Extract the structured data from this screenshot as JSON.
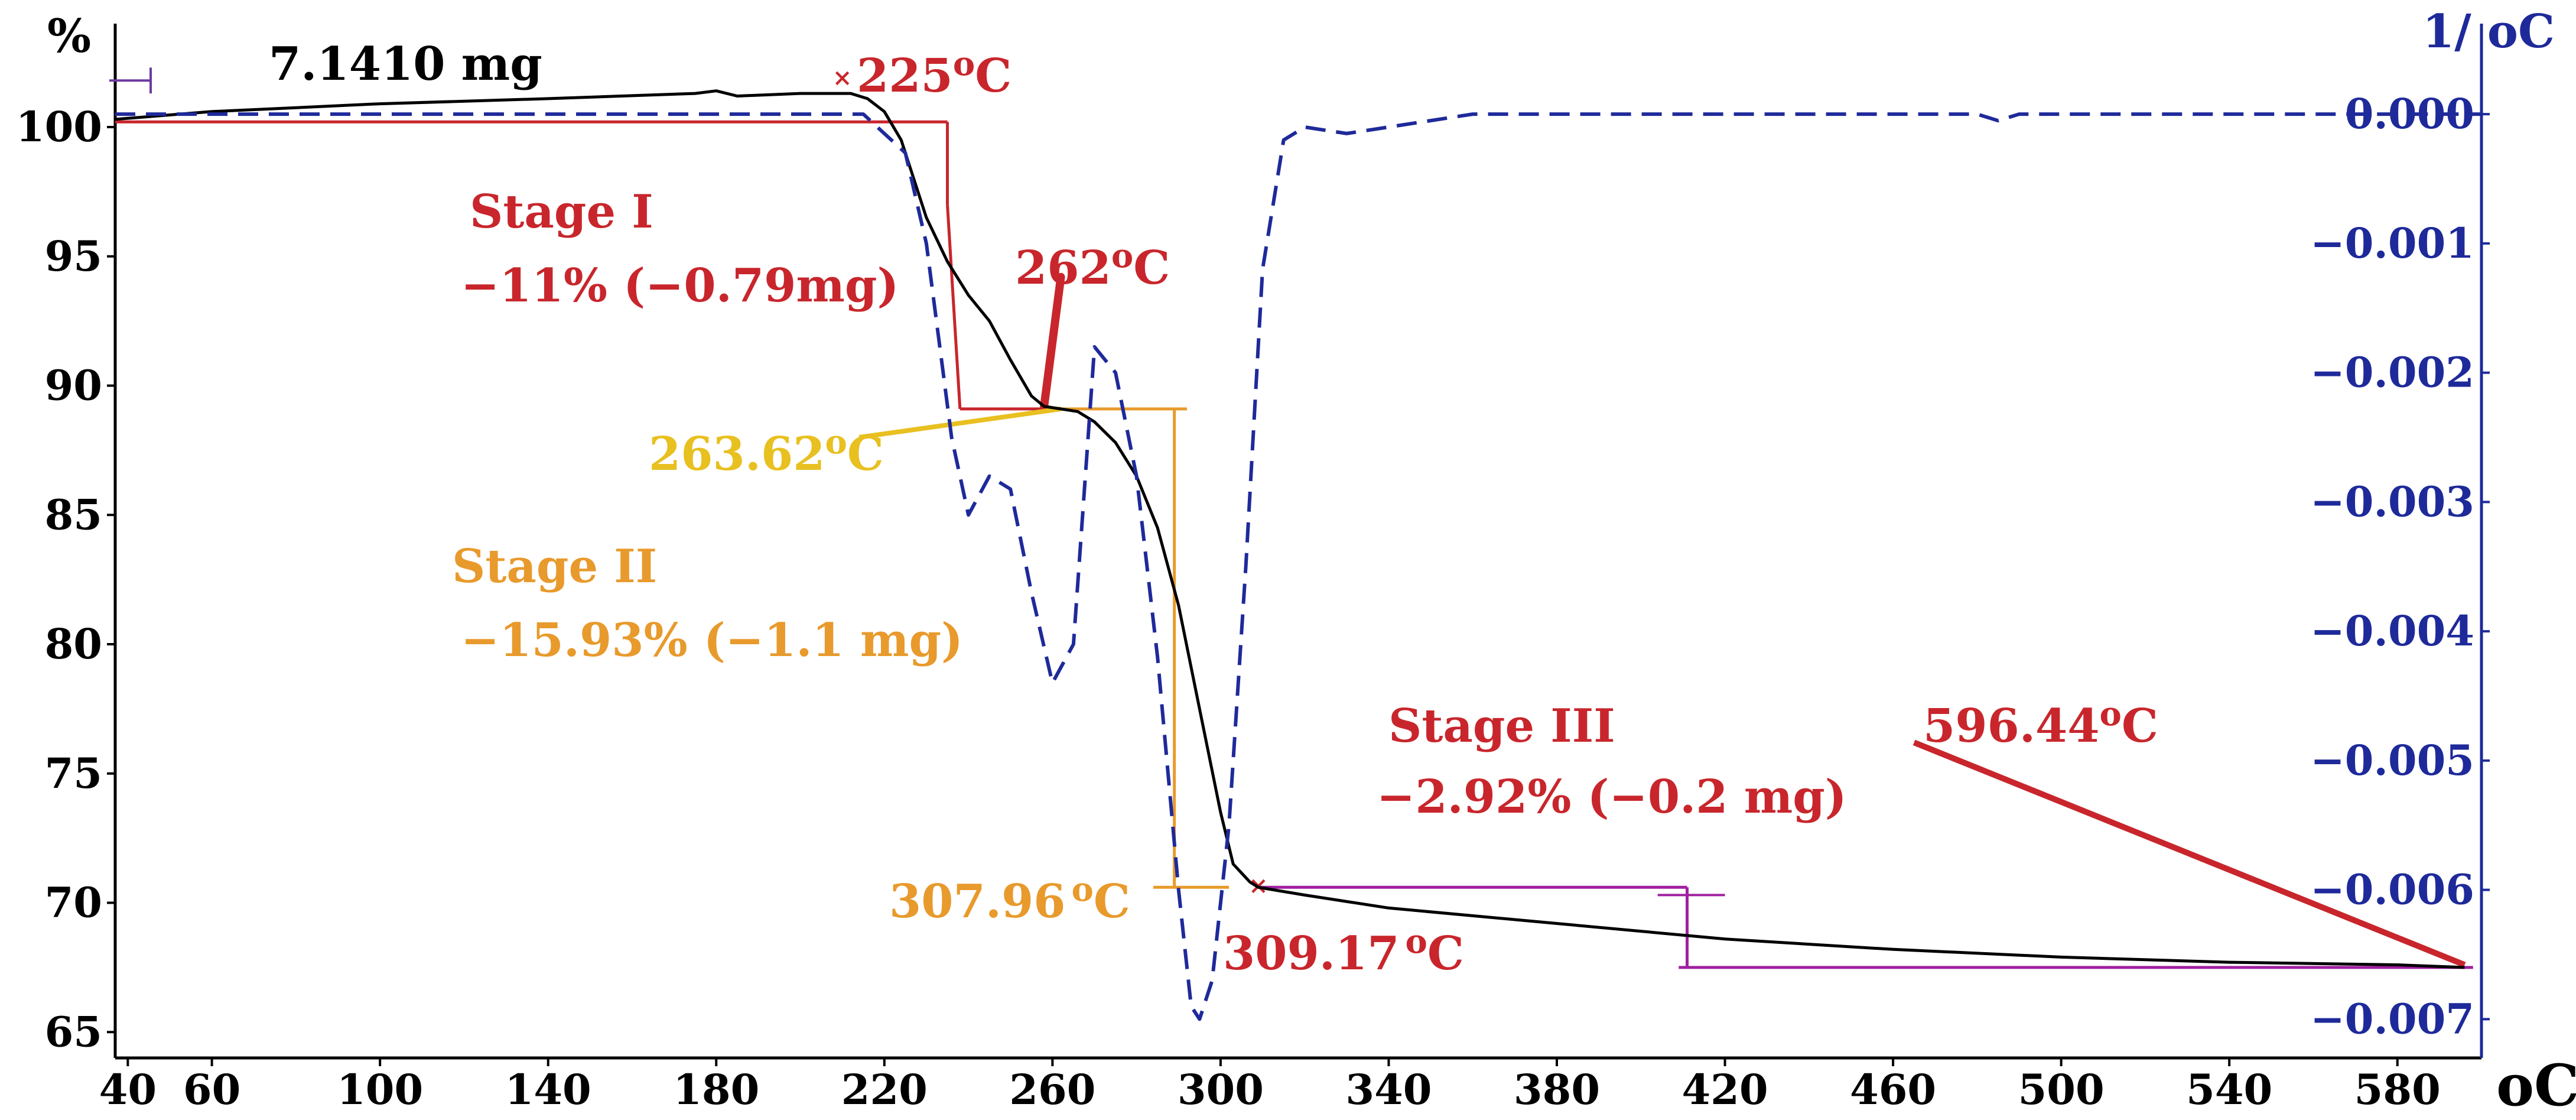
{
  "chart_data": {
    "type": "line",
    "sample_mass": "7.1410 mg",
    "x_unit": "oC",
    "y_left_unit": "%",
    "y_right_unit": "1/ oC",
    "xlim": [
      37,
      600
    ],
    "ylim_left": [
      64,
      104
    ],
    "ylim_right": [
      -0.0073,
      0.0007
    ],
    "x_ticks": [
      40,
      60,
      100,
      140,
      180,
      220,
      260,
      300,
      340,
      380,
      420,
      460,
      500,
      540,
      580
    ],
    "y_left_ticks": [
      100,
      95,
      90,
      85,
      80,
      75,
      70,
      65
    ],
    "y_right_ticks": [
      0.0,
      -0.001,
      -0.002,
      -0.003,
      -0.004,
      -0.005,
      -0.006,
      -0.007
    ],
    "y_right_tick_labels": [
      "0.000",
      "−0.001",
      "−0.002",
      "−0.003",
      "−0.004",
      "−0.005",
      "−0.006",
      "−0.007"
    ],
    "colors": {
      "tga": "#000000",
      "dtg": "#1e2a9a",
      "stage1": "#c8262c",
      "stage2": "#e89a2c",
      "stage3": "#a020a0",
      "onset": "#e8c020",
      "axis_right": "#1e2a9a"
    },
    "series": [
      {
        "axis": "left",
        "style": "solid",
        "x": [
          37,
          60,
          100,
          140,
          175,
          180,
          185,
          200,
          212,
          216,
          220,
          224,
          227,
          230,
          235,
          240,
          245,
          250,
          255,
          258,
          262,
          266,
          270,
          275,
          280,
          285,
          290,
          295,
          300,
          303,
          307,
          309,
          320,
          340,
          380,
          420,
          460,
          500,
          540,
          580,
          596
        ],
        "y": [
          100.3,
          100.6,
          100.9,
          101.1,
          101.3,
          101.4,
          101.2,
          101.3,
          101.3,
          101.1,
          100.6,
          99.5,
          98.0,
          96.5,
          94.8,
          93.5,
          92.5,
          91.0,
          89.6,
          89.2,
          89.1,
          89.0,
          88.6,
          87.8,
          86.5,
          84.5,
          81.5,
          77.5,
          73.5,
          71.5,
          70.8,
          70.6,
          70.3,
          69.8,
          69.2,
          68.6,
          68.2,
          67.9,
          67.7,
          67.6,
          67.5
        ]
      },
      {
        "axis": "right",
        "style": "dashed",
        "x": [
          37,
          100,
          180,
          205,
          215,
          225,
          230,
          236,
          240,
          245,
          250,
          255,
          260,
          265,
          270,
          275,
          280,
          285,
          290,
          293,
          295,
          298,
          302,
          306,
          310,
          315,
          320,
          330,
          340,
          360,
          400,
          480,
          485,
          490,
          540,
          600
        ],
        "y": [
          0.0,
          0.0,
          0.0,
          0.0,
          0.0,
          -0.0003,
          -0.001,
          -0.0025,
          -0.0031,
          -0.0028,
          -0.0029,
          -0.0037,
          -0.0044,
          -0.0041,
          -0.0018,
          -0.002,
          -0.0028,
          -0.0042,
          -0.006,
          -0.0069,
          -0.007,
          -0.0067,
          -0.0055,
          -0.0035,
          -0.0012,
          -0.0002,
          -0.0001,
          -0.00015,
          -0.0001,
          0.0,
          0.0,
          0.0,
          -5e-05,
          0.0,
          0.0,
          0.0
        ]
      }
    ],
    "annotations": {
      "stage1_title": "Stage I",
      "stage1_loss": "−11% (−0.79mg)",
      "stage1_start": "225",
      "stage1_end": "262",
      "stage2_title": "Stage II",
      "stage2_loss": "−15.93% (−1.1 mg)",
      "stage2_start": "263.62",
      "stage2_end": "307.96",
      "stage3_title": "Stage III",
      "stage3_loss": "−2.92% (−0.2 mg)",
      "stage3_start": "309.17",
      "stage3_end": "596.44",
      "degree_o": "o",
      "degree_C": "C"
    }
  }
}
